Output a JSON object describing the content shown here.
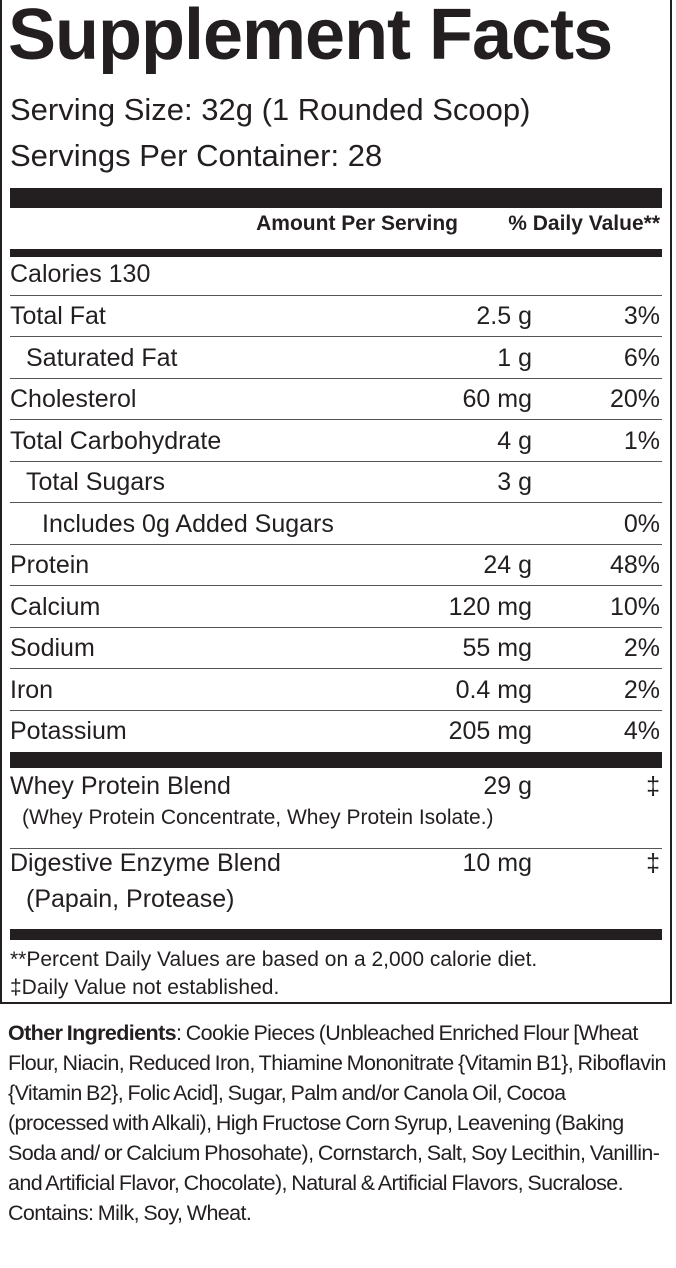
{
  "title": "Supplement Facts",
  "serving_size": "Serving Size: 32g (1 Rounded Scoop)",
  "servings_per_container": "Servings Per Container: 28",
  "header": {
    "amount": "Amount Per Serving",
    "dv": "% Daily Value**"
  },
  "calories": "Calories  130",
  "nutrients": [
    {
      "name": "Total Fat",
      "amount": "2.5 g",
      "dv": "3%"
    },
    {
      "name": "Saturated Fat",
      "amount": "1 g",
      "dv": "6%"
    },
    {
      "name": "Cholesterol",
      "amount": "60 mg",
      "dv": "20%"
    },
    {
      "name": "Total Carbohydrate",
      "amount": "4 g",
      "dv": "1%"
    },
    {
      "name": "Total Sugars",
      "amount": "3 g",
      "dv": ""
    },
    {
      "name": "Includes 0g Added Sugars",
      "amount": "",
      "dv": "0%"
    },
    {
      "name": "Protein",
      "amount": "24 g",
      "dv": "48%"
    },
    {
      "name": "Calcium",
      "amount": "120 mg",
      "dv": "10%"
    },
    {
      "name": "Sodium",
      "amount": "55 mg",
      "dv": "2%"
    },
    {
      "name": "Iron",
      "amount": "0.4 mg",
      "dv": "2%"
    },
    {
      "name": "Potassium",
      "amount": "205 mg",
      "dv": "4%"
    }
  ],
  "blends": [
    {
      "name": "Whey Protein Blend",
      "amount": "29 g",
      "dv": "‡",
      "detail": "(Whey Protein Concentrate, Whey Protein Isolate.)"
    },
    {
      "name": "Digestive Enzyme Blend",
      "amount": "10 mg",
      "dv": "‡",
      "detail": "(Papain, Protease)"
    }
  ],
  "footnotes": [
    "**Percent Daily Values are based on a 2,000 calorie diet.",
    "‡Daily Value not established."
  ],
  "ingredients": {
    "label": "Other Ingredients",
    "text": ": Cookie Pieces (Unbleached Enriched Flour [Wheat Flour, Niacin, Reduced Iron, Thiamine Mononitrate {Vitamin B1}, Riboflavin {Vitamin B2}, Folic Acid], Sugar, Palm and/or Canola Oil, Cocoa (processed with Alkali), High Fructose Corn Syrup, Leavening (Baking Soda and/ or Calcium Phosohate), Cornstarch, Salt, Soy Lecithin, Vanillin-and Artificial Flavor, Chocolate), Natural & Artificial Flavors, Sucralose.",
    "contains": "Contains: Milk, Soy, Wheat."
  }
}
